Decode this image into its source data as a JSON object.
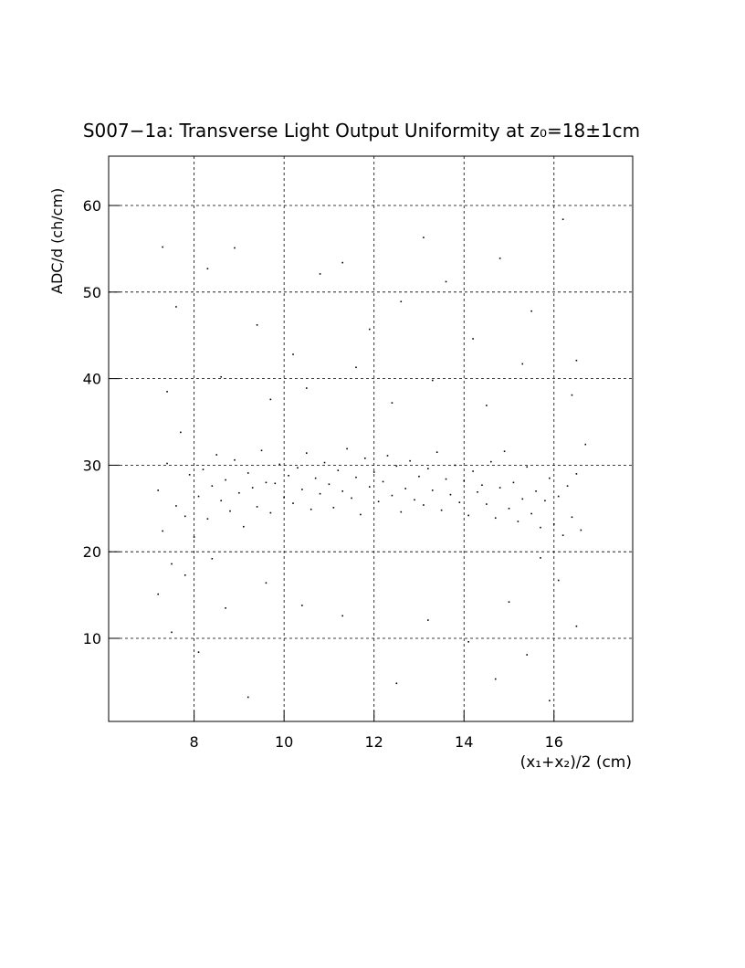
{
  "chart_data": {
    "type": "scatter",
    "title": "S007−1a: Transverse Light Output Uniformity at z₀=18±1cm",
    "x_label": "(x₁+x₂)/2 (cm)",
    "y_label": "ADC/d (ch/cm)",
    "color": "#000000",
    "grid": true,
    "xlim": [
      6.1,
      17.75
    ],
    "ylim": [
      0.4,
      65.7
    ],
    "xticks": [
      8,
      10,
      12,
      14,
      16
    ],
    "yticks": [
      10,
      20,
      30,
      40,
      50,
      60
    ],
    "x": [
      7.2,
      7.3,
      7.4,
      7.5,
      7.6,
      7.7,
      7.8,
      7.9,
      8.0,
      8.1,
      8.2,
      8.3,
      8.4,
      8.5,
      8.6,
      8.7,
      8.8,
      8.9,
      9.0,
      9.1,
      9.2,
      9.3,
      9.4,
      9.5,
      9.6,
      9.7,
      9.8,
      9.9,
      10.0,
      10.1,
      10.2,
      10.3,
      10.4,
      10.5,
      10.6,
      10.7,
      10.8,
      10.9,
      11.0,
      11.1,
      11.2,
      11.3,
      11.4,
      11.5,
      11.6,
      11.7,
      11.8,
      11.9,
      12.0,
      12.1,
      12.2,
      12.3,
      12.4,
      12.5,
      12.6,
      12.7,
      12.8,
      12.9,
      13.0,
      13.1,
      13.2,
      13.3,
      13.4,
      13.5,
      13.6,
      13.7,
      13.8,
      13.9,
      14.0,
      14.1,
      14.2,
      14.3,
      14.4,
      14.5,
      14.6,
      14.7,
      14.8,
      14.9,
      15.0,
      15.1,
      15.2,
      15.3,
      15.4,
      15.5,
      15.6,
      15.7,
      15.8,
      15.9,
      16.0,
      16.1,
      16.2,
      16.3,
      16.4,
      16.5,
      16.6,
      16.7,
      7.3,
      7.6,
      8.3,
      8.9,
      9.4,
      10.2,
      10.8,
      11.3,
      11.9,
      12.6,
      13.1,
      13.6,
      14.2,
      14.8,
      15.5,
      16.2,
      16.5,
      7.4,
      8.6,
      9.7,
      10.5,
      11.6,
      12.4,
      13.3,
      14.5,
      15.3,
      16.4,
      7.2,
      7.5,
      7.8,
      8.1,
      8.4,
      8.7,
      9.2,
      9.6,
      10.4,
      11.3,
      12.5,
      13.2,
      14.1,
      14.7,
      15.0,
      15.4,
      15.7,
      15.9,
      16.1,
      16.5
    ],
    "values": [
      27.1,
      22.4,
      30.2,
      18.6,
      25.3,
      33.8,
      24.1,
      28.9,
      21.7,
      26.4,
      29.5,
      23.8,
      27.6,
      31.2,
      25.9,
      28.3,
      24.7,
      30.6,
      26.8,
      22.9,
      29.1,
      27.4,
      25.2,
      31.7,
      28.0,
      24.5,
      27.9,
      30.1,
      26.3,
      28.8,
      25.6,
      29.7,
      27.2,
      31.4,
      24.9,
      28.5,
      26.7,
      30.3,
      27.8,
      25.1,
      29.4,
      27.0,
      31.9,
      26.2,
      28.6,
      24.3,
      30.8,
      27.5,
      29.2,
      25.8,
      28.1,
      31.1,
      26.5,
      29.9,
      24.6,
      27.3,
      30.5,
      26.0,
      28.7,
      25.4,
      29.6,
      27.1,
      31.5,
      24.8,
      28.4,
      26.6,
      30.0,
      25.7,
      28.2,
      24.2,
      29.3,
      26.9,
      27.7,
      25.5,
      30.4,
      23.9,
      27.4,
      31.6,
      25.0,
      28.0,
      23.5,
      26.1,
      29.8,
      24.4,
      27.0,
      22.8,
      25.9,
      28.5,
      23.2,
      26.4,
      21.9,
      27.6,
      24.0,
      29.0,
      22.5,
      32.4,
      55.2,
      48.3,
      52.7,
      55.1,
      46.2,
      42.8,
      52.1,
      53.4,
      45.7,
      48.9,
      56.3,
      51.2,
      44.6,
      53.9,
      47.8,
      58.4,
      42.1,
      38.5,
      40.2,
      37.6,
      38.9,
      41.3,
      37.2,
      39.8,
      36.9,
      41.7,
      38.1,
      15.1,
      10.7,
      17.3,
      8.4,
      19.2,
      13.5,
      3.2,
      16.4,
      13.8,
      12.6,
      4.8,
      12.1,
      9.6,
      5.3,
      14.2,
      8.1,
      19.3,
      2.8,
      16.7,
      11.4
    ]
  }
}
